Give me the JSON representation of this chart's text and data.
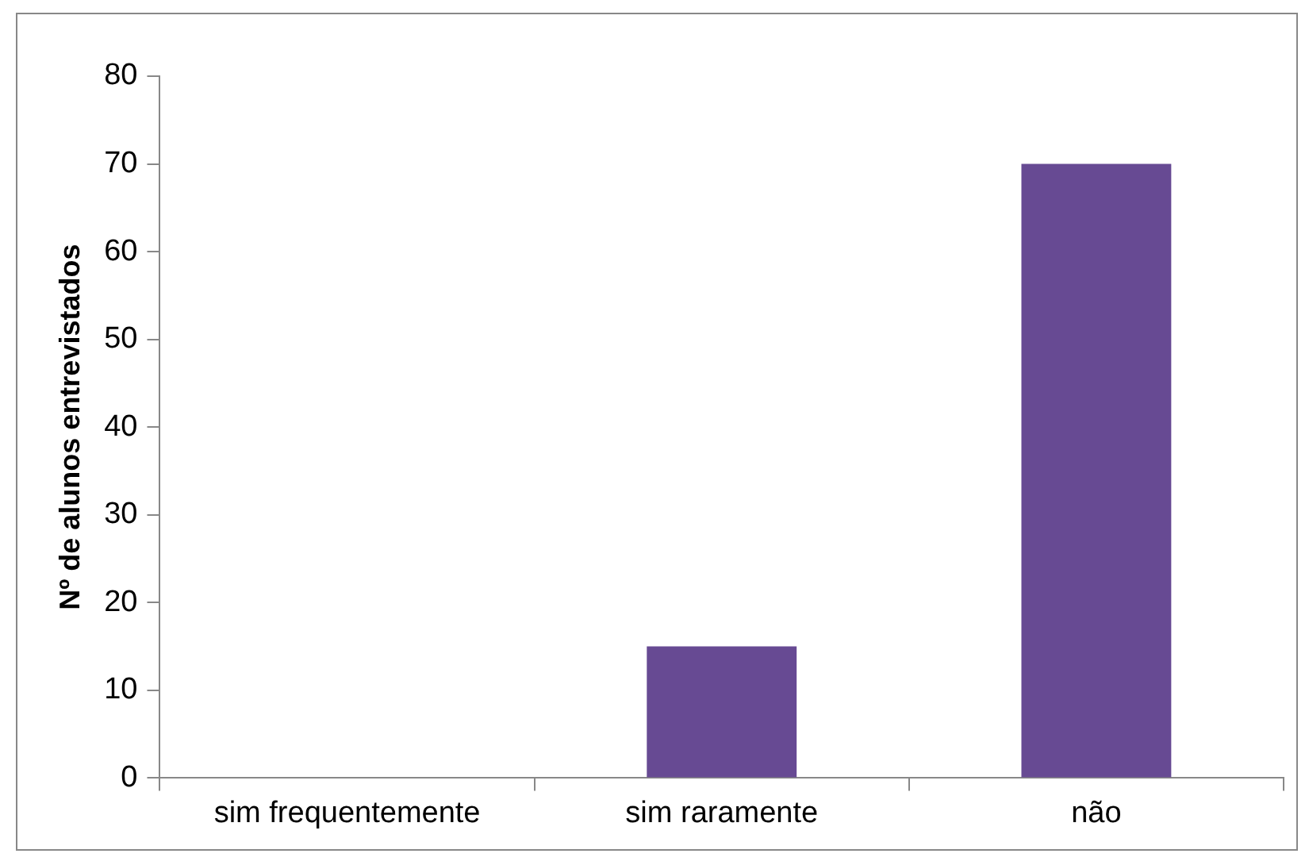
{
  "chart_data": {
    "type": "bar",
    "ylabel": "Nº de alunos entrevistados",
    "categories": [
      "sim frequentemente",
      "sim raramente",
      "não"
    ],
    "values": [
      0,
      15,
      70
    ],
    "color": "#674a93",
    "ylim": [
      0,
      80
    ],
    "yticks": [
      0,
      10,
      20,
      30,
      40,
      50,
      60,
      70,
      80
    ],
    "grid": false,
    "legend": false
  }
}
